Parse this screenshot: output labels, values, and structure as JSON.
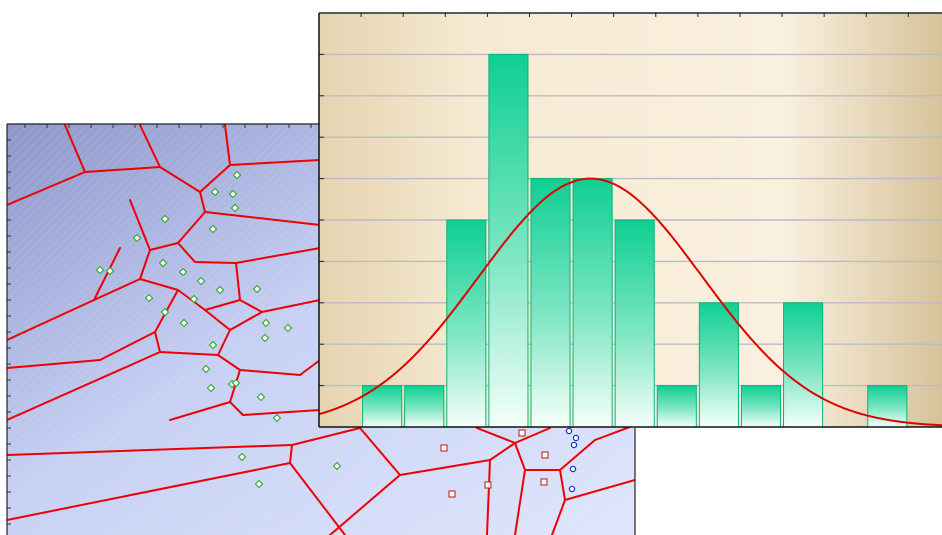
{
  "chart_data": [
    {
      "type": "voronoi",
      "title": "",
      "xlabel": "",
      "ylabel": "",
      "grid": false,
      "colors": {
        "background_from": "#8d96c9",
        "background_to": "#d8e1fb",
        "cell_edges": "#ee0000",
        "group_a": "#2aa82a",
        "group_b": "#cc2222",
        "group_c": "#1a33cc"
      },
      "point_groups": [
        {
          "marker": "diamond",
          "points": [
            [
              237,
              175
            ],
            [
              215,
              192
            ],
            [
              233,
              194
            ],
            [
              235,
              208
            ],
            [
              165,
              219
            ],
            [
              213,
              229
            ],
            [
              137,
              238
            ],
            [
              100,
              270
            ],
            [
              110,
              271
            ],
            [
              163,
              263
            ],
            [
              183,
              272
            ],
            [
              201,
              281
            ],
            [
              257,
              289
            ],
            [
              149,
              298
            ],
            [
              194,
              299
            ],
            [
              220,
              290
            ],
            [
              165,
              312
            ],
            [
              184,
              323
            ],
            [
              266,
              323
            ],
            [
              288,
              328
            ],
            [
              265,
              338
            ],
            [
              213,
              345
            ],
            [
              206,
              369
            ],
            [
              211,
              388
            ],
            [
              232,
              384
            ],
            [
              236,
              383
            ],
            [
              261,
              397
            ],
            [
              277,
              418
            ],
            [
              242,
              457
            ],
            [
              337,
              466
            ],
            [
              259,
              484
            ]
          ]
        },
        {
          "marker": "square",
          "points": [
            [
              522,
              433
            ],
            [
              444,
              448
            ],
            [
              545,
              455
            ],
            [
              488,
              485
            ],
            [
              544,
              482
            ],
            [
              452,
              494
            ]
          ]
        },
        {
          "marker": "circle",
          "points": [
            [
              569,
              431
            ],
            [
              576,
              438
            ],
            [
              574,
              445
            ],
            [
              573,
              469
            ],
            [
              572,
              489
            ]
          ]
        }
      ],
      "edges": [
        [
          [
            7,
            205
          ],
          [
            85,
            172
          ]
        ],
        [
          [
            85,
            172
          ],
          [
            65,
            125
          ]
        ],
        [
          [
            85,
            172
          ],
          [
            160,
            167
          ]
        ],
        [
          [
            160,
            167
          ],
          [
            140,
            125
          ]
        ],
        [
          [
            160,
            167
          ],
          [
            200,
            192
          ]
        ],
        [
          [
            200,
            192
          ],
          [
            230,
            165
          ]
        ],
        [
          [
            230,
            165
          ],
          [
            225,
            125
          ]
        ],
        [
          [
            230,
            165
          ],
          [
            320,
            160
          ]
        ],
        [
          [
            200,
            192
          ],
          [
            205,
            212
          ]
        ],
        [
          [
            205,
            212
          ],
          [
            320,
            225
          ]
        ],
        [
          [
            205,
            212
          ],
          [
            178,
            243
          ]
        ],
        [
          [
            178,
            243
          ],
          [
            150,
            250
          ]
        ],
        [
          [
            150,
            250
          ],
          [
            130,
            200
          ]
        ],
        [
          [
            150,
            250
          ],
          [
            140,
            279
          ]
        ],
        [
          [
            140,
            279
          ],
          [
            94,
            300
          ]
        ],
        [
          [
            94,
            300
          ],
          [
            7,
            340
          ]
        ],
        [
          [
            94,
            300
          ],
          [
            120,
            248
          ]
        ],
        [
          [
            178,
            243
          ],
          [
            195,
            262
          ]
        ],
        [
          [
            195,
            262
          ],
          [
            236,
            263
          ]
        ],
        [
          [
            236,
            263
          ],
          [
            320,
            248
          ]
        ],
        [
          [
            236,
            263
          ],
          [
            240,
            300
          ]
        ],
        [
          [
            240,
            300
          ],
          [
            205,
            310
          ]
        ],
        [
          [
            205,
            310
          ],
          [
            178,
            290
          ]
        ],
        [
          [
            178,
            290
          ],
          [
            140,
            279
          ]
        ],
        [
          [
            178,
            290
          ],
          [
            155,
            332
          ]
        ],
        [
          [
            155,
            332
          ],
          [
            100,
            360
          ]
        ],
        [
          [
            100,
            360
          ],
          [
            7,
            368
          ]
        ],
        [
          [
            155,
            332
          ],
          [
            160,
            352
          ]
        ],
        [
          [
            160,
            352
          ],
          [
            7,
            420
          ]
        ],
        [
          [
            160,
            352
          ],
          [
            218,
            355
          ]
        ],
        [
          [
            218,
            355
          ],
          [
            230,
            330
          ]
        ],
        [
          [
            230,
            330
          ],
          [
            205,
            310
          ]
        ],
        [
          [
            230,
            330
          ],
          [
            262,
            312
          ]
        ],
        [
          [
            262,
            312
          ],
          [
            240,
            300
          ]
        ],
        [
          [
            262,
            312
          ],
          [
            320,
            300
          ]
        ],
        [
          [
            218,
            355
          ],
          [
            240,
            370
          ]
        ],
        [
          [
            240,
            370
          ],
          [
            230,
            402
          ]
        ],
        [
          [
            230,
            402
          ],
          [
            170,
            420
          ]
        ],
        [
          [
            230,
            402
          ],
          [
            243,
            415
          ]
        ],
        [
          [
            243,
            415
          ],
          [
            320,
            410
          ]
        ],
        [
          [
            240,
            370
          ],
          [
            300,
            375
          ]
        ],
        [
          [
            300,
            375
          ],
          [
            320,
            360
          ]
        ],
        [
          [
            7,
            455
          ],
          [
            292,
            445
          ]
        ],
        [
          [
            292,
            445
          ],
          [
            360,
            428
          ]
        ],
        [
          [
            292,
            445
          ],
          [
            290,
            463
          ]
        ],
        [
          [
            290,
            463
          ],
          [
            7,
            520
          ]
        ],
        [
          [
            290,
            463
          ],
          [
            345,
            535
          ]
        ],
        [
          [
            360,
            428
          ],
          [
            400,
            475
          ]
        ],
        [
          [
            400,
            475
          ],
          [
            330,
            535
          ]
        ],
        [
          [
            400,
            475
          ],
          [
            490,
            460
          ]
        ],
        [
          [
            490,
            460
          ],
          [
            515,
            443
          ]
        ],
        [
          [
            515,
            443
          ],
          [
            477,
            428
          ]
        ],
        [
          [
            515,
            443
          ],
          [
            550,
            428
          ]
        ],
        [
          [
            490,
            460
          ],
          [
            487,
            535
          ]
        ],
        [
          [
            515,
            443
          ],
          [
            525,
            470
          ]
        ],
        [
          [
            525,
            470
          ],
          [
            560,
            470
          ]
        ],
        [
          [
            560,
            470
          ],
          [
            595,
            440
          ]
        ],
        [
          [
            595,
            440
          ],
          [
            635,
            425
          ]
        ],
        [
          [
            560,
            470
          ],
          [
            565,
            500
          ]
        ],
        [
          [
            565,
            500
          ],
          [
            635,
            480
          ]
        ],
        [
          [
            565,
            500
          ],
          [
            552,
            535
          ]
        ],
        [
          [
            525,
            470
          ],
          [
            515,
            535
          ]
        ]
      ]
    },
    {
      "type": "histogram",
      "title": "",
      "xlabel": "",
      "ylabel": "",
      "grid": true,
      "ylim": [
        0,
        10
      ],
      "xlim": [
        0,
        14.8
      ],
      "bins": [
        [
          1,
          2
        ],
        [
          2,
          3
        ],
        [
          3,
          4
        ],
        [
          4,
          5
        ],
        [
          5,
          6
        ],
        [
          6,
          7
        ],
        [
          7,
          8
        ],
        [
          8,
          9
        ],
        [
          9,
          10
        ],
        [
          10,
          11
        ],
        [
          11,
          12
        ],
        [
          12,
          13
        ],
        [
          13,
          14
        ],
        [
          14,
          15
        ]
      ],
      "values": [
        1,
        1,
        5,
        9,
        6,
        6,
        5,
        1,
        3,
        1,
        3,
        0,
        1,
        0
      ],
      "fit_curve": {
        "type": "normal",
        "mean": 6.45,
        "sd": 2.65,
        "peak": 6
      },
      "colors": {
        "background_left": "#e8d7b6",
        "background_mid": "#f8efdc",
        "background_right": "#d8c49c",
        "bar_top": "#0fcf92",
        "bar_bottom": "#f5fffa",
        "bar_edge": "#08b47a",
        "curve": "#e00000",
        "grid": "#b8bcc8"
      }
    }
  ]
}
